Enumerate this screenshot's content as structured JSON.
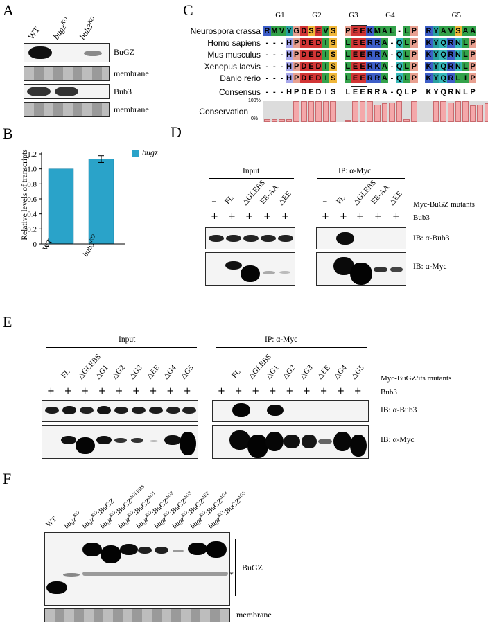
{
  "panels": {
    "A": "A",
    "B": "B",
    "C": "C",
    "D": "D",
    "E": "E",
    "F": "F"
  },
  "panelA": {
    "lanes": [
      "WT",
      "bugz",
      "bub3"
    ],
    "lane_sup": [
      "",
      "KO",
      "KO"
    ],
    "rows": [
      "BuGZ",
      "membrane",
      "Bub3",
      "membrane"
    ]
  },
  "chart_data": {
    "type": "bar",
    "categories": [
      "WT",
      "bub3KO"
    ],
    "series": [
      {
        "name": "bugz",
        "values": [
          1.0,
          1.13
        ],
        "error": [
          0,
          0.045
        ]
      }
    ],
    "ylabel": "Relative levels of transcripts",
    "ylim": [
      0,
      1.2
    ],
    "yticks": [
      "0",
      "0.2",
      "0.4",
      "0.6",
      "0.8",
      "1.0",
      "1.2"
    ],
    "color": "#2aa3c9"
  },
  "panelB": {
    "legend": "bugz",
    "xlabels": [
      "WT",
      "bub3"
    ],
    "xsup": [
      "",
      "KO"
    ]
  },
  "panelC": {
    "groups": [
      "G1",
      "G2",
      "G3",
      "G4",
      "G5"
    ],
    "species": [
      "Neurospora crassa",
      "Homo sapiens",
      "Mus musculus",
      "Xenopus laevis",
      "Danio rerio"
    ],
    "sequences": [
      "RMVYGDSEVS PEEKMAL-LP RYAVSAA",
      "---HPDEDIS LEERRA-QLP KYQRNLP",
      "---HPDEDIS LEERRA-QLP KYQRNLP",
      "---HPDEDIS LEERKA-QLP KYQRNLP",
      "---HPDEDIS LEERRA-QLP KYQRLIP"
    ],
    "consensus_label": "Consensus",
    "consensus": "---HPDEDIS LEERRA-QLP KYQRNLP",
    "conservation_label": "Conservation",
    "pct_top": "100%",
    "pct_bottom": "0%",
    "conservation": [
      0.15,
      0.15,
      0.15,
      0.15,
      1,
      1,
      1,
      1,
      1,
      1,
      0.1,
      1,
      1,
      1,
      0.85,
      0.9,
      0.95,
      1,
      0.15,
      1,
      1,
      1,
      0.95,
      1,
      1,
      0.8,
      0.85,
      0.9
    ]
  },
  "panelD": {
    "input_title": "Input",
    "ip_title": "IP: α-Myc",
    "lanes": [
      "–",
      "FL",
      "△GLEBS",
      "EE-AA",
      "△EE"
    ],
    "row_label": "Myc-BuGZ mutants",
    "bub3_label": "Bub3",
    "plus": "+",
    "blot1": "IB: α-Bub3",
    "blot2": "IB: α-Myc"
  },
  "panelE": {
    "input_title": "Input",
    "ip_title": "IP: α-Myc",
    "lanes": [
      "–",
      "FL",
      "△GLEBS",
      "△G1",
      "△G2",
      "△G3",
      "△EE",
      "△G4",
      "△G5"
    ],
    "row_label": "Myc-BuGZ/its mutants",
    "bub3_label": "Bub3",
    "plus": "+",
    "blot1": "IB: α-Bub3",
    "blot2": "IB: α-Myc"
  },
  "panelF": {
    "lanes": [
      {
        "base": "WT",
        "sup": "",
        "rest": ""
      },
      {
        "base": "bugz",
        "sup": "KO",
        "rest": ""
      },
      {
        "base": "bugz",
        "sup": "KO",
        "rest": ";BuGZ",
        "sup2": ""
      },
      {
        "base": "bugz",
        "sup": "KO",
        "rest": ";BuGZ",
        "sup2": "ΔGLEBS"
      },
      {
        "base": "bugz",
        "sup": "KO",
        "rest": ";BuGZ",
        "sup2": "ΔG1"
      },
      {
        "base": "bugz",
        "sup": "KO",
        "rest": ";BuGZ",
        "sup2": "ΔG2"
      },
      {
        "base": "bugz",
        "sup": "KO",
        "rest": ";BuGZ",
        "sup2": "ΔG3"
      },
      {
        "base": "bugz",
        "sup": "KO",
        "rest": ";BuGZ",
        "sup2": "ΔEE"
      },
      {
        "base": "bugz",
        "sup": "KO",
        "rest": ";BuGZ",
        "sup2": "ΔG4"
      },
      {
        "base": "bugz",
        "sup": "KO",
        "rest": ";BuGZ",
        "sup2": "ΔG5"
      }
    ],
    "band_label": "BuGZ",
    "star": "*",
    "membrane": "membrane"
  }
}
